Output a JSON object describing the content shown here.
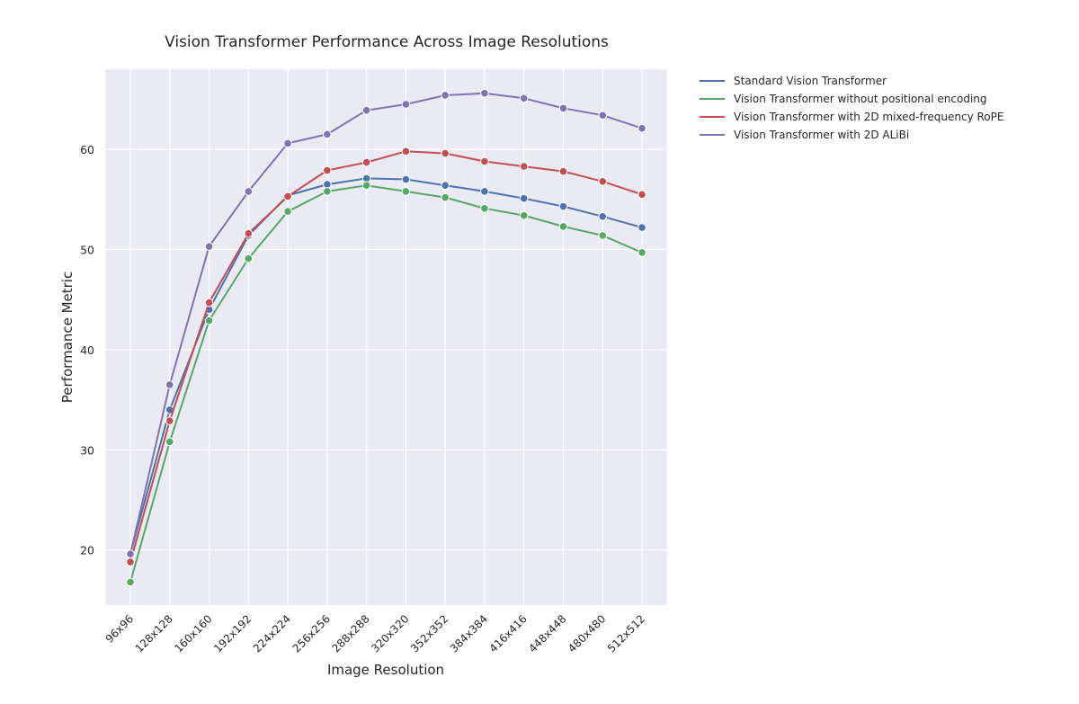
{
  "chart_data": {
    "type": "line",
    "title": "Vision Transformer Performance Across Image Resolutions",
    "xlabel": "Image Resolution",
    "ylabel": "Performance Metric",
    "ylim": [
      14.5,
      68
    ],
    "yticks": [
      20,
      30,
      40,
      50,
      60
    ],
    "grid": true,
    "legend_position": "outside-top-right",
    "categories": [
      "96x96",
      "128x128",
      "160x160",
      "192x192",
      "224x224",
      "256x256",
      "288x288",
      "320x320",
      "352x352",
      "384x384",
      "416x416",
      "448x448",
      "480x480",
      "512x512"
    ],
    "series": [
      {
        "name": "Standard Vision Transformer",
        "color": "#4c72b0",
        "values": [
          19.6,
          34.0,
          44.0,
          51.4,
          55.4,
          56.5,
          57.1,
          57.0,
          56.4,
          55.8,
          55.1,
          54.3,
          53.3,
          52.2
        ]
      },
      {
        "name": "Vision Transformer without positional encoding",
        "color": "#55a868",
        "values": [
          16.8,
          30.8,
          42.9,
          49.1,
          53.8,
          55.8,
          56.4,
          55.8,
          55.2,
          54.1,
          53.4,
          52.3,
          51.4,
          49.7
        ]
      },
      {
        "name": "Vision Transformer with 2D mixed-frequency RoPE",
        "color": "#c44e52",
        "values": [
          18.8,
          32.9,
          44.7,
          51.6,
          55.3,
          57.9,
          58.7,
          59.8,
          59.6,
          58.8,
          58.3,
          57.8,
          56.8,
          55.5
        ]
      },
      {
        "name": "Vision Transformer with 2D ALiBi",
        "color": "#8172b3",
        "values": [
          19.6,
          36.5,
          50.3,
          55.8,
          60.6,
          61.5,
          63.9,
          64.5,
          65.4,
          65.6,
          65.1,
          64.1,
          63.4,
          62.1
        ]
      }
    ]
  }
}
